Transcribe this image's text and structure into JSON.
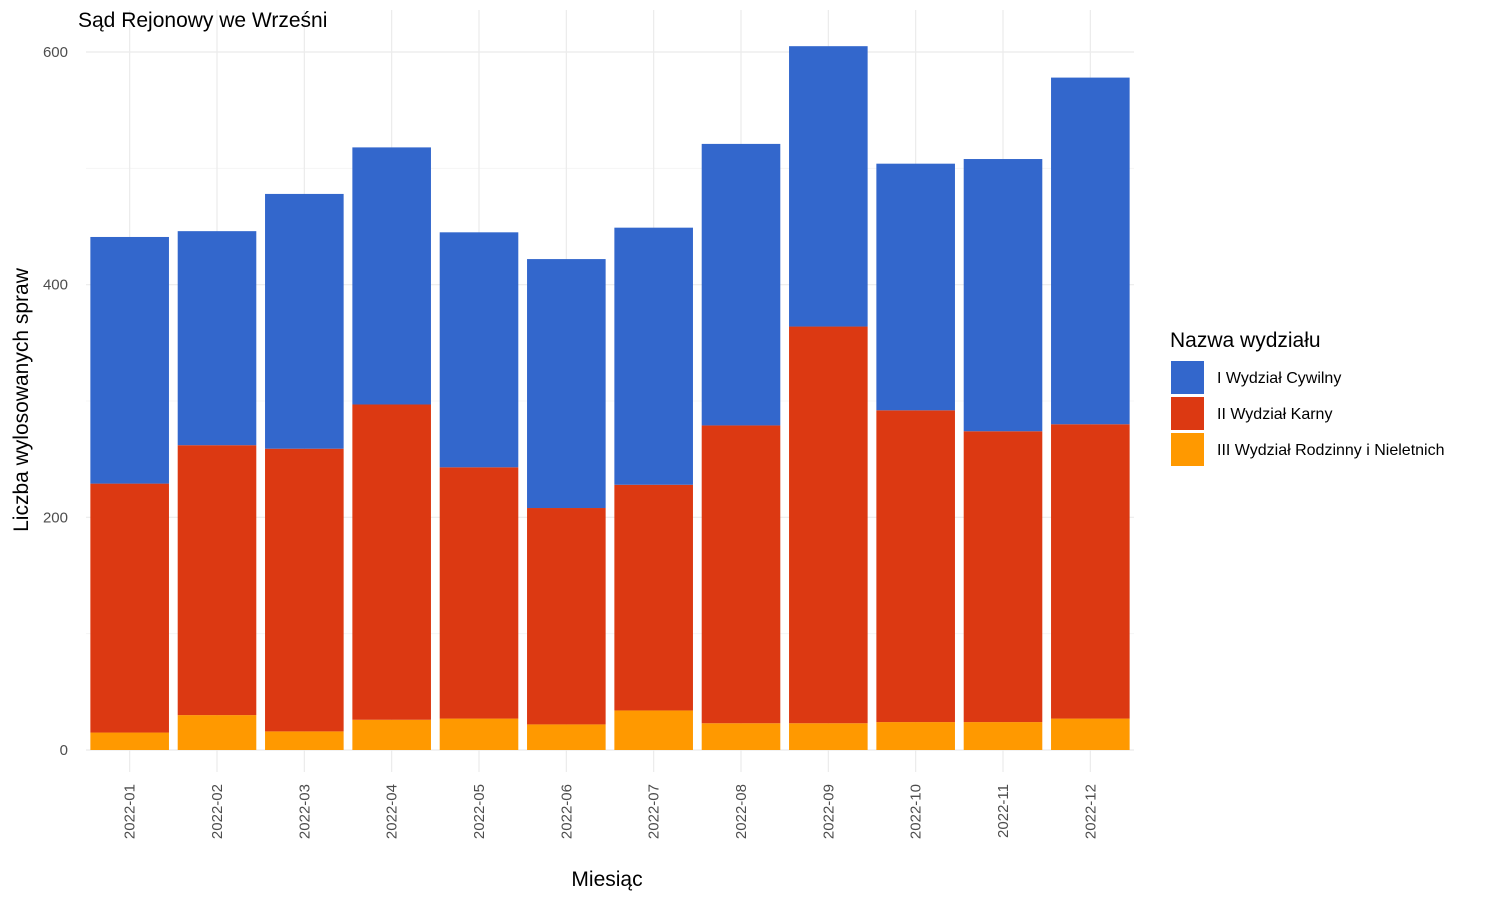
{
  "chart_data": {
    "type": "bar",
    "stacked": true,
    "title": "Sąd Rejonowy we Wrześni",
    "xlabel": "Miesiąc",
    "ylabel": "Liczba wylosowanych spraw",
    "ylim": [
      0,
      600
    ],
    "yticks": [
      0,
      200,
      400,
      600
    ],
    "grid": true,
    "legend_title": "Nazwa wydziału",
    "legend_position": "right",
    "categories": [
      "2022-01",
      "2022-02",
      "2022-03",
      "2022-04",
      "2022-05",
      "2022-06",
      "2022-07",
      "2022-08",
      "2022-09",
      "2022-10",
      "2022-11",
      "2022-12"
    ],
    "series": [
      {
        "name": "I Wydział Cywilny",
        "color": "#3367cc",
        "values": [
          212,
          184,
          219,
          221,
          202,
          214,
          221,
          242,
          241,
          212,
          234,
          298
        ]
      },
      {
        "name": "II Wydział Karny",
        "color": "#dc3912",
        "values": [
          214,
          232,
          243,
          271,
          216,
          186,
          194,
          256,
          341,
          268,
          250,
          253
        ]
      },
      {
        "name": "III Wydział Rodzinny i Nieletnich",
        "color": "#ff9900",
        "values": [
          15,
          30,
          16,
          26,
          27,
          22,
          34,
          23,
          23,
          24,
          24,
          27
        ]
      }
    ]
  }
}
